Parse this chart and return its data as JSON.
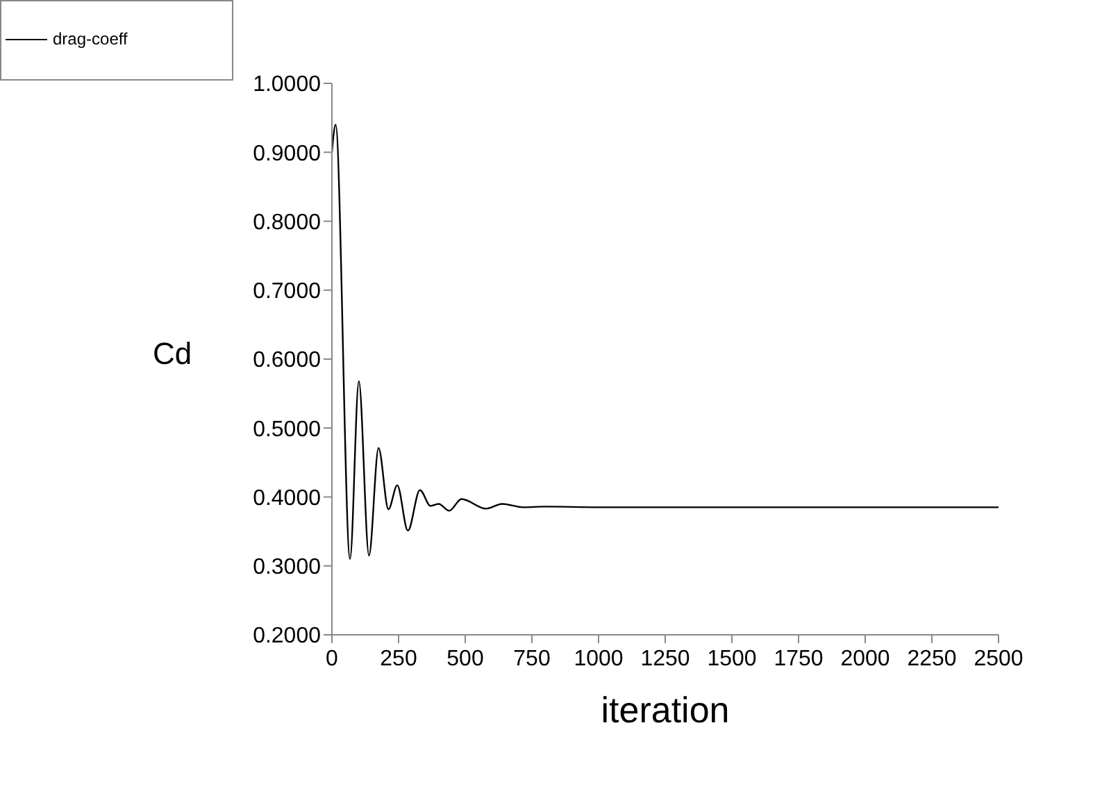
{
  "chart_data": {
    "type": "line",
    "xlabel": "iteration",
    "ylabel": "Cd",
    "x": [
      0,
      14,
      68,
      101,
      139,
      175,
      212,
      245,
      285,
      330,
      370,
      400,
      440,
      486,
      578,
      639,
      717,
      800,
      1000,
      1250,
      1500,
      1750,
      2000,
      2250,
      2500
    ],
    "series": [
      {
        "name": "drag-coeff",
        "color": "#000000",
        "values": [
          0.9,
          0.94,
          0.31,
          0.568,
          0.315,
          0.471,
          0.382,
          0.417,
          0.351,
          0.41,
          0.387,
          0.39,
          0.38,
          0.397,
          0.383,
          0.39,
          0.385,
          0.386,
          0.385,
          0.385,
          0.385,
          0.385,
          0.385,
          0.385,
          0.385
        ]
      }
    ],
    "xlim": [
      0,
      2500
    ],
    "xticks": [
      0,
      250,
      500,
      750,
      1000,
      1250,
      1500,
      1750,
      2000,
      2250,
      2500
    ],
    "ylim": [
      0.2,
      1.0
    ],
    "yticks": [
      {
        "value": 0.2,
        "label": "0.2000"
      },
      {
        "value": 0.3,
        "label": "0.3000"
      },
      {
        "value": 0.4,
        "label": "0.4000"
      },
      {
        "value": 0.5,
        "label": "0.5000"
      },
      {
        "value": 0.6,
        "label": "0.6000"
      },
      {
        "value": 0.7,
        "label": "0.7000"
      },
      {
        "value": 0.8,
        "label": "0.8000"
      },
      {
        "value": 0.9,
        "label": "0.9000"
      },
      {
        "value": 1.0,
        "label": "1.0000"
      }
    ],
    "grid": false,
    "legend": "top left",
    "marker": "none",
    "line_style": "solid"
  }
}
